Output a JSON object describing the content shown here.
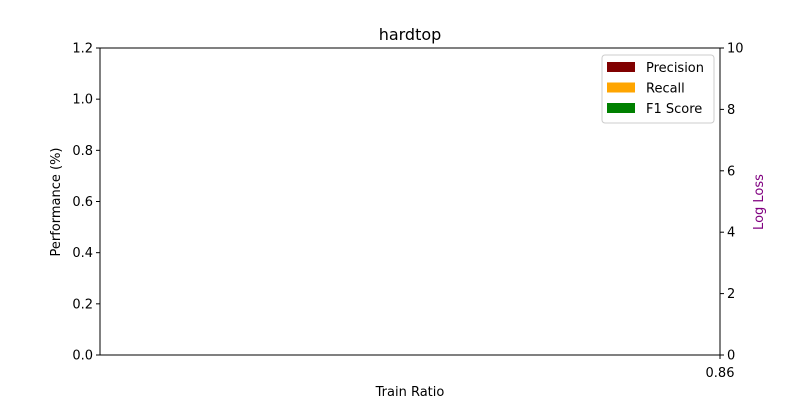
{
  "chart_data": {
    "type": "bar",
    "title": "hardtop",
    "xlabel": "Train Ratio",
    "ylabel": "Performance (%)",
    "y2label": "Log Loss",
    "categories": [
      "0.86"
    ],
    "ylim": [
      0,
      1.2
    ],
    "y2lim": [
      0,
      10
    ],
    "yticks": [
      "0.0",
      "0.2",
      "0.4",
      "0.6",
      "0.8",
      "1.0",
      "1.2"
    ],
    "y2ticks": [
      "0",
      "2",
      "4",
      "6",
      "8",
      "10"
    ],
    "series": [
      {
        "name": "Precision",
        "color": "#800000",
        "values": [
          0
        ]
      },
      {
        "name": "Recall",
        "color": "#ffa500",
        "values": [
          0
        ]
      },
      {
        "name": "F1 Score",
        "color": "#008000",
        "values": [
          0
        ]
      }
    ],
    "y2_color": "#800080",
    "legend_position": "top-right",
    "grid": false
  }
}
